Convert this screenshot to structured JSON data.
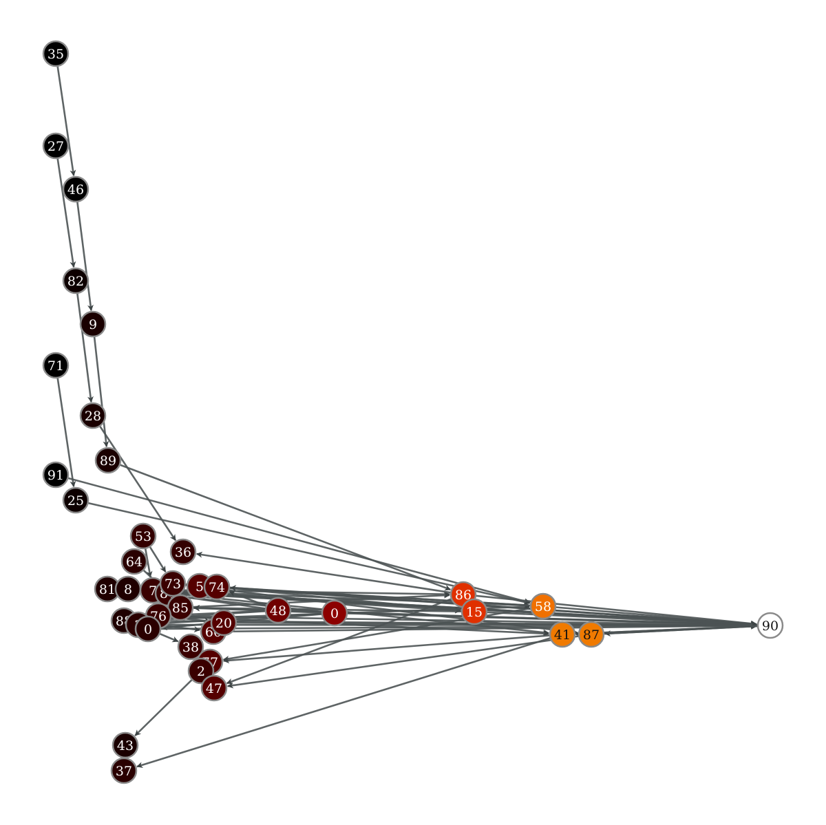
{
  "colors": {
    "edge": "#4c5354",
    "node_stroke": "#8a8a8a",
    "label_light": "#ffffff",
    "label_dark": "#111111"
  },
  "nodes": [
    {
      "id": "35",
      "fill": "#000000"
    },
    {
      "id": "27",
      "fill": "#000000"
    },
    {
      "id": "46",
      "fill": "#000000"
    },
    {
      "id": "82",
      "fill": "#0d0000"
    },
    {
      "id": "9",
      "fill": "#1a0000"
    },
    {
      "id": "71",
      "fill": "#000000"
    },
    {
      "id": "28",
      "fill": "#1a0000"
    },
    {
      "id": "89",
      "fill": "#1a0000"
    },
    {
      "id": "91",
      "fill": "#000000"
    },
    {
      "id": "25",
      "fill": "#0d0000"
    },
    {
      "id": "53",
      "fill": "#330000"
    },
    {
      "id": "36",
      "fill": "#330000"
    },
    {
      "id": "64",
      "fill": "#2a0000"
    },
    {
      "id": "81",
      "fill": "#1f0000"
    },
    {
      "id": "8",
      "fill": "#1f0000"
    },
    {
      "id": "7",
      "fill": "#3a0000"
    },
    {
      "id": "84",
      "fill": "#3a0000"
    },
    {
      "id": "73",
      "fill": "#3a0000"
    },
    {
      "id": "5",
      "fill": "#550000"
    },
    {
      "id": "74",
      "fill": "#550000"
    },
    {
      "id": "85",
      "fill": "#3a0000"
    },
    {
      "id": "76",
      "fill": "#3a0000"
    },
    {
      "id": "88",
      "fill": "#1f0000"
    },
    {
      "id": "3",
      "fill": "#2a0000"
    },
    {
      "id": "0",
      "fill": "#2a0000"
    },
    {
      "id": "48",
      "fill": "#700000"
    },
    {
      "id": "0",
      "fill": "#8c0000"
    },
    {
      "id": "86",
      "fill": "#e03000"
    },
    {
      "id": "15",
      "fill": "#e03000"
    },
    {
      "id": "58",
      "fill": "#f07000"
    },
    {
      "id": "41",
      "fill": "#f07a00"
    },
    {
      "id": "87",
      "fill": "#f07a00"
    },
    {
      "id": "90",
      "fill": "#ffffff"
    },
    {
      "id": "60",
      "fill": "#550000"
    },
    {
      "id": "20",
      "fill": "#550000"
    },
    {
      "id": "38",
      "fill": "#3a0000"
    },
    {
      "id": "77",
      "fill": "#550000"
    },
    {
      "id": "2",
      "fill": "#3a0000"
    },
    {
      "id": "47",
      "fill": "#550000"
    },
    {
      "id": "43",
      "fill": "#1a0000"
    },
    {
      "id": "37",
      "fill": "#2a0000"
    }
  ]
}
